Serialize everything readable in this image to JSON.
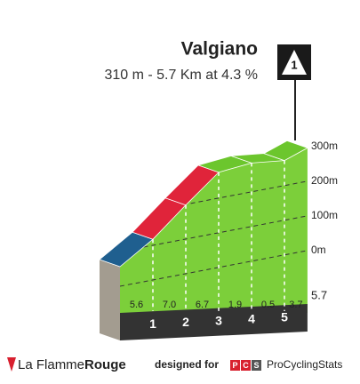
{
  "chart_data": {
    "type": "climb-profile",
    "title": "Valgiano",
    "subtitle": "310 m - 5.7 Km at 4.3 %",
    "category": "1",
    "values": [
      5.6,
      7.0,
      6.7,
      1.9,
      0.5,
      3.7
    ],
    "value_labels": [
      "5.6",
      "7.0",
      "6.7",
      "1.9",
      "0.5",
      "3.7"
    ],
    "colors": [
      "#1f5f8f",
      "#e0243a",
      "#e0243a",
      "#6cc62d",
      "#6cc62d",
      "#6cc62d"
    ],
    "km_markers": [
      1,
      2,
      3,
      4,
      5
    ],
    "distance": 5.7,
    "ylim": [
      0,
      300
    ],
    "yticks": [
      {
        "value": 0,
        "label": "0m"
      },
      {
        "value": 100,
        "label": "100m"
      },
      {
        "value": 200,
        "label": "200m"
      },
      {
        "value": 300,
        "label": "300m"
      }
    ]
  },
  "footer": {
    "brand": "La Flamme",
    "brand_bold": "Rouge",
    "credit": "designed for",
    "pcs": [
      "P",
      "C",
      "S"
    ],
    "site": "ProCyclingStats"
  }
}
